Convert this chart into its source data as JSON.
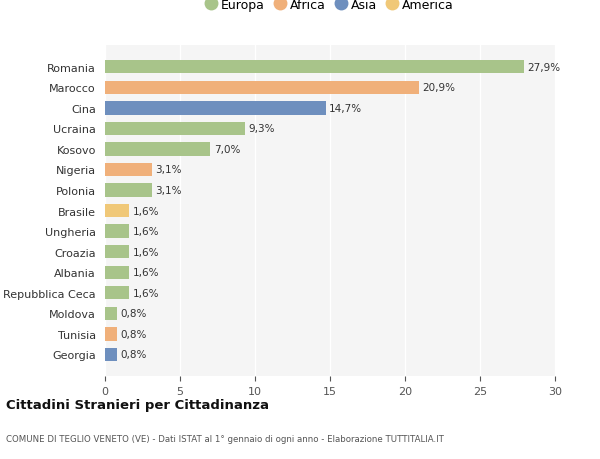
{
  "countries": [
    "Romania",
    "Marocco",
    "Cina",
    "Ucraina",
    "Kosovo",
    "Nigeria",
    "Polonia",
    "Brasile",
    "Ungheria",
    "Croazia",
    "Albania",
    "Repubblica Ceca",
    "Moldova",
    "Tunisia",
    "Georgia"
  ],
  "values": [
    27.9,
    20.9,
    14.7,
    9.3,
    7.0,
    3.1,
    3.1,
    1.6,
    1.6,
    1.6,
    1.6,
    1.6,
    0.8,
    0.8,
    0.8
  ],
  "labels": [
    "27,9%",
    "20,9%",
    "14,7%",
    "9,3%",
    "7,0%",
    "3,1%",
    "3,1%",
    "1,6%",
    "1,6%",
    "1,6%",
    "1,6%",
    "1,6%",
    "0,8%",
    "0,8%",
    "0,8%"
  ],
  "continents": [
    "Europa",
    "Africa",
    "Asia",
    "Europa",
    "Europa",
    "Africa",
    "Europa",
    "America",
    "Europa",
    "Europa",
    "Europa",
    "Europa",
    "Europa",
    "Africa",
    "Asia"
  ],
  "continent_colors": {
    "Europa": "#a8c48a",
    "Africa": "#f0b07a",
    "Asia": "#6e8fbe",
    "America": "#f0c878"
  },
  "legend_order": [
    "Europa",
    "Africa",
    "Asia",
    "America"
  ],
  "background_color": "#ffffff",
  "plot_bg_color": "#f5f5f5",
  "grid_color": "#ffffff",
  "title": "Cittadini Stranieri per Cittadinanza",
  "subtitle": "COMUNE DI TEGLIO VENETO (VE) - Dati ISTAT al 1° gennaio di ogni anno - Elaborazione TUTTITALIA.IT",
  "xlim": [
    0,
    30
  ],
  "xticks": [
    0,
    5,
    10,
    15,
    20,
    25,
    30
  ]
}
